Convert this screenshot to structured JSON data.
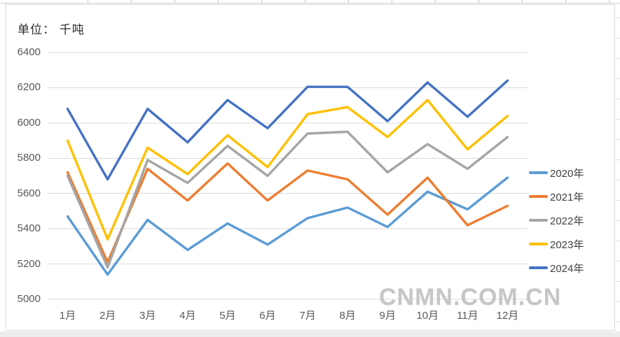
{
  "watermark": "CNMN.COM.CN",
  "chart_data": {
    "type": "line",
    "title": "单位： 千吨",
    "x": [
      "1月",
      "2月",
      "3月",
      "4月",
      "5月",
      "6月",
      "7月",
      "8月",
      "9月",
      "10月",
      "11月",
      "12月"
    ],
    "series": [
      {
        "name": "2020年",
        "color": "#5B9BD5",
        "values": [
          5470,
          5140,
          5450,
          5280,
          5430,
          5310,
          5460,
          5520,
          5410,
          5610,
          5510,
          5690
        ]
      },
      {
        "name": "2021年",
        "color": "#ED7D31",
        "values": [
          5720,
          5210,
          5740,
          5560,
          5770,
          5560,
          5730,
          5680,
          5480,
          5690,
          5420,
          5530
        ]
      },
      {
        "name": "2022年",
        "color": "#A5A5A5",
        "values": [
          5700,
          5180,
          5790,
          5660,
          5870,
          5700,
          5940,
          5950,
          5720,
          5880,
          5740,
          5920
        ]
      },
      {
        "name": "2023年",
        "color": "#FFC000",
        "values": [
          5900,
          5340,
          5860,
          5710,
          5930,
          5750,
          6050,
          6090,
          5920,
          6130,
          5850,
          6040
        ]
      },
      {
        "name": "2024年",
        "color": "#4472C4",
        "values": [
          6080,
          5680,
          6080,
          5890,
          6130,
          5970,
          6205,
          6205,
          6010,
          6230,
          6035,
          6240
        ]
      }
    ],
    "ylim": [
      5000,
      6400
    ],
    "yticks": [
      5000,
      5200,
      5400,
      5600,
      5800,
      6000,
      6200,
      6400
    ],
    "grid": true,
    "legend_position": "right",
    "gridline_color": "#d9d9d9",
    "axis_text_color": "#595959"
  }
}
